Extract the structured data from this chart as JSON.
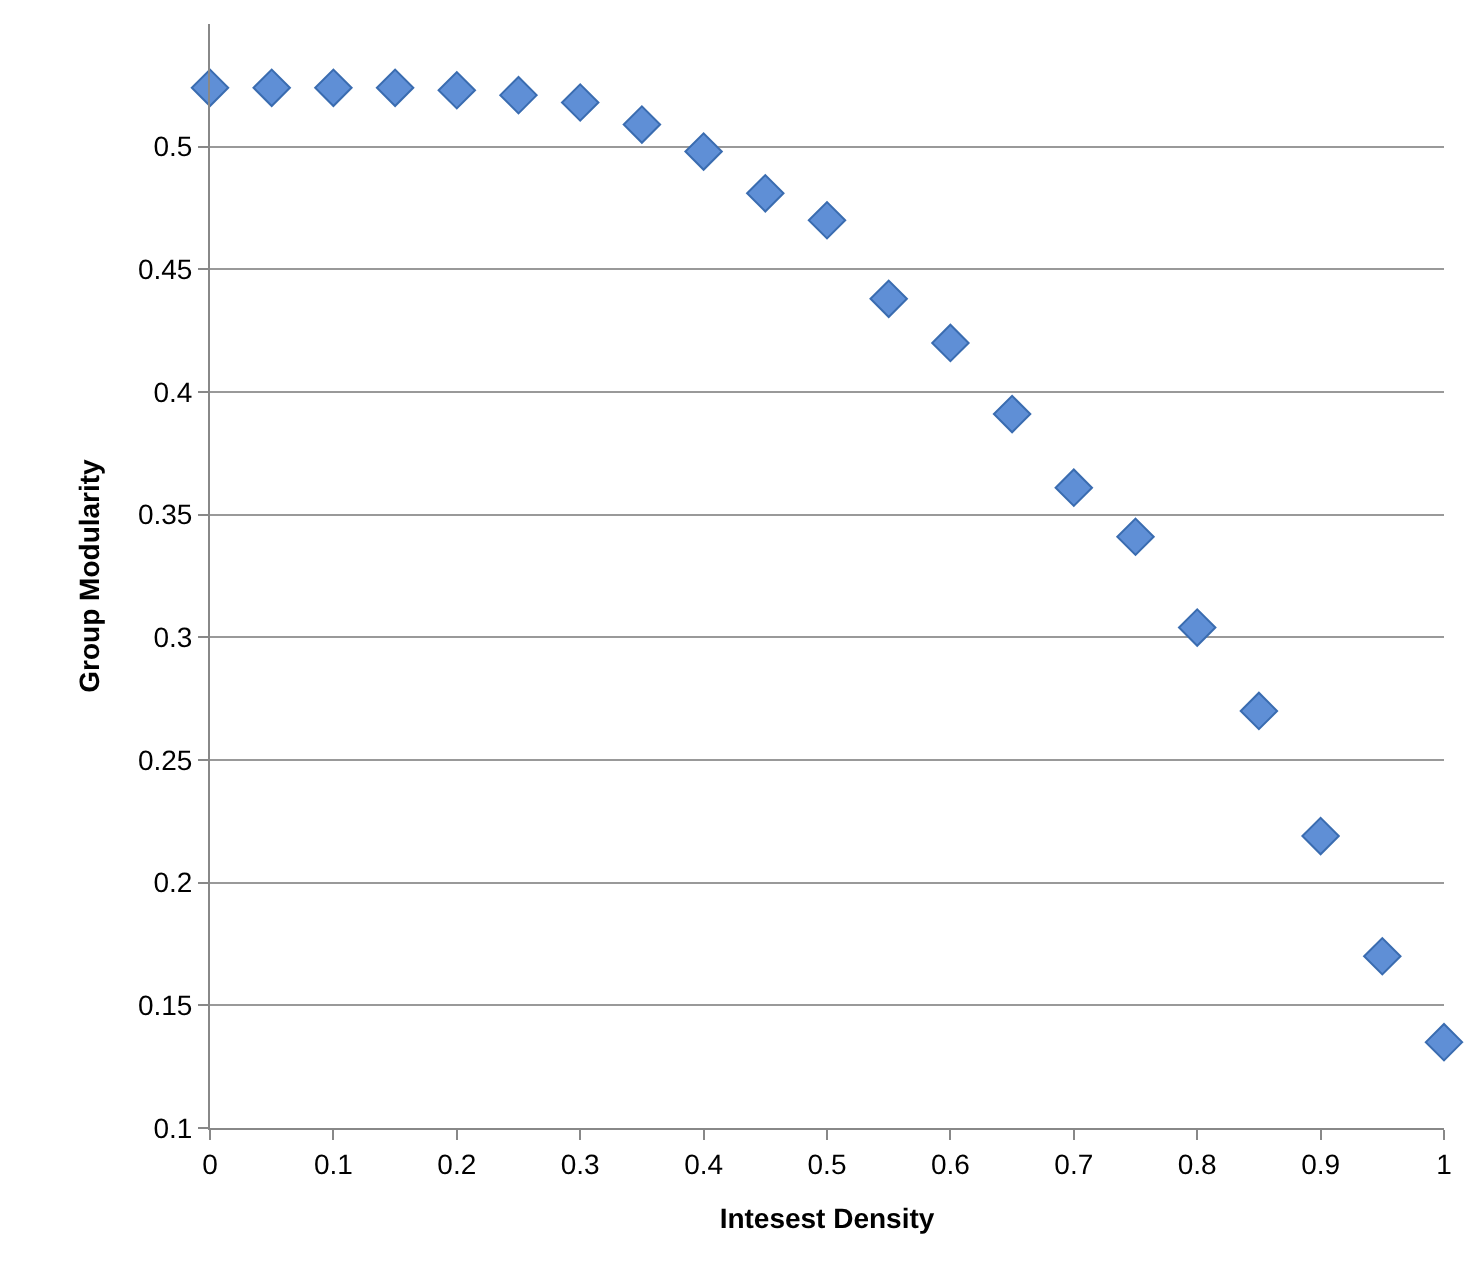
{
  "chart_data": {
    "type": "scatter",
    "xlabel": "Intesest Density",
    "ylabel": "Group Modularity",
    "x": [
      0,
      0.05,
      0.1,
      0.15,
      0.2,
      0.25,
      0.3,
      0.35,
      0.4,
      0.45,
      0.5,
      0.55,
      0.6,
      0.65,
      0.7,
      0.75,
      0.8,
      0.85,
      0.9,
      0.95,
      1
    ],
    "series": [
      {
        "color": "#5f8fd6",
        "values": [
          0.524,
          0.524,
          0.524,
          0.524,
          0.523,
          0.521,
          0.518,
          0.509,
          0.498,
          0.481,
          0.47,
          0.438,
          0.42,
          0.391,
          0.361,
          0.341,
          0.304,
          0.27,
          0.219,
          0.17,
          0.135
        ]
      }
    ],
    "xlim": [
      0,
      1
    ],
    "xticks": [
      0,
      0.1,
      0.2,
      0.3,
      0.4,
      0.5,
      0.6,
      0.7,
      0.8,
      0.9,
      1
    ],
    "ylim": [
      0.1,
      0.55
    ],
    "yticks": [
      0.1,
      0.15,
      0.2,
      0.25,
      0.3,
      0.35,
      0.4,
      0.45,
      0.5
    ],
    "grid": "y",
    "marker": "diamond"
  }
}
